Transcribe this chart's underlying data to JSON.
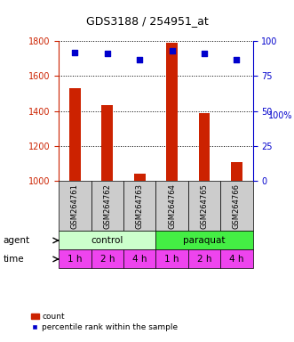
{
  "title": "GDS3188 / 254951_at",
  "samples": [
    "GSM264761",
    "GSM264762",
    "GSM264763",
    "GSM264764",
    "GSM264765",
    "GSM264766"
  ],
  "counts": [
    1530,
    1435,
    1045,
    1790,
    1390,
    1110
  ],
  "percentiles": [
    92,
    91,
    87,
    93,
    91,
    87
  ],
  "ylim_left": [
    1000,
    1800
  ],
  "ylim_right": [
    0,
    100
  ],
  "yticks_left": [
    1000,
    1200,
    1400,
    1600,
    1800
  ],
  "yticks_right": [
    0,
    25,
    50,
    75,
    100
  ],
  "bar_color": "#cc2200",
  "dot_color": "#0000cc",
  "agent_labels": [
    "control",
    "paraquat"
  ],
  "agent_colors": [
    "#ccffcc",
    "#44ee44"
  ],
  "time_labels": [
    "1 h",
    "2 h",
    "4 h",
    "1 h",
    "2 h",
    "4 h"
  ],
  "time_color": "#ee44ee",
  "header_bg": "#cccccc",
  "legend_bar_label": "count",
  "legend_dot_label": "percentile rank within the sample",
  "bar_width": 0.35
}
